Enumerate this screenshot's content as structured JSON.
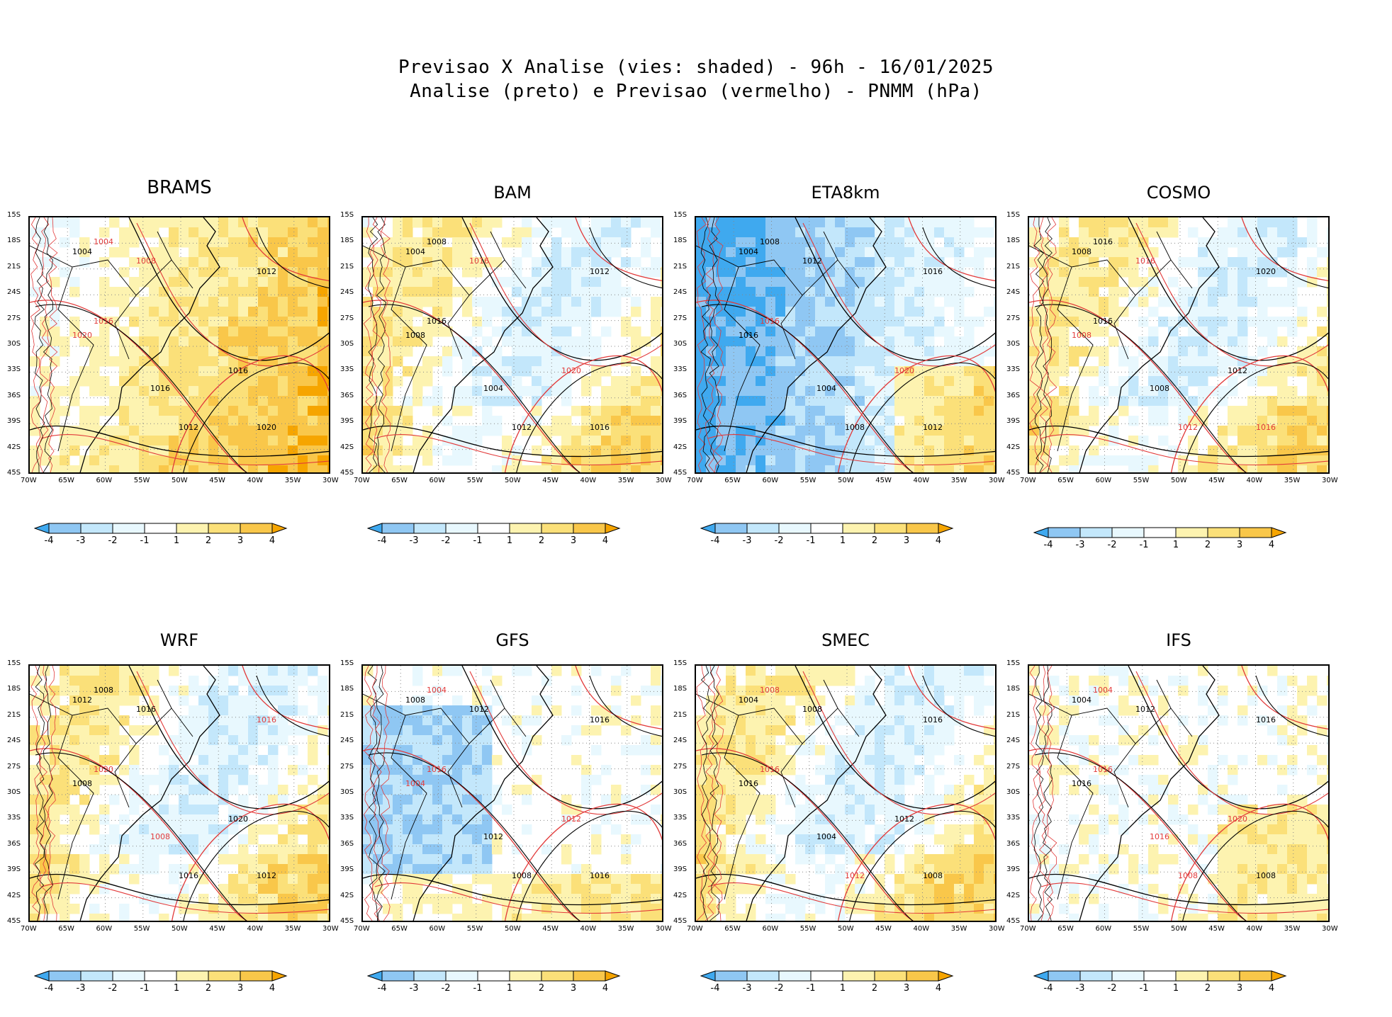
{
  "header": {
    "line1": "Previsao X Analise (vies: shaded) - 96h - 16/01/2025",
    "line2": "Analise (preto) e Previsao (vermelho) - PNMM (hPa)"
  },
  "axes": {
    "lat_ticks": [
      "15S",
      "18S",
      "21S",
      "24S",
      "27S",
      "30S",
      "33S",
      "36S",
      "39S",
      "42S",
      "45S"
    ],
    "lon_ticks": [
      "70W",
      "65W",
      "60W",
      "55W",
      "50W",
      "45W",
      "40W",
      "35W",
      "30W"
    ]
  },
  "colorbar": {
    "labels": [
      "-4",
      "-3",
      "-2",
      "-1",
      "1",
      "2",
      "3",
      "4"
    ],
    "colors": [
      "#3fa9ef",
      "#8fc7f3",
      "#c3e7fb",
      "#e8f8fe",
      "#ffffff",
      "#fdf3b0",
      "#fbe079",
      "#f9c74a",
      "#f6a500"
    ]
  },
  "chart_data": [
    {
      "type": "heatmap",
      "title": "BRAMS",
      "bias": "warm",
      "xlabel": "",
      "ylabel": "",
      "xlim": [
        -70,
        -30
      ],
      "ylim": [
        -45,
        -15
      ],
      "contours": [
        {
          "t": "1004",
          "c": "red"
        },
        {
          "t": "1004",
          "c": "black"
        },
        {
          "t": "1008",
          "c": "red"
        },
        {
          "t": "1012",
          "c": "black"
        },
        {
          "t": "1016",
          "c": "red"
        },
        {
          "t": "1016",
          "c": "black"
        },
        {
          "t": "1020",
          "c": "red"
        },
        {
          "t": "1020",
          "c": "black"
        },
        {
          "t": "1012",
          "c": "black"
        },
        {
          "t": "1016",
          "c": "black"
        }
      ]
    },
    {
      "type": "heatmap",
      "title": "BAM",
      "bias": "mixed",
      "xlabel": "",
      "ylabel": "",
      "xlim": [
        -70,
        -30
      ],
      "ylim": [
        -45,
        -15
      ],
      "contours": [
        {
          "t": "1008",
          "c": "black"
        },
        {
          "t": "1004",
          "c": "black"
        },
        {
          "t": "1016",
          "c": "red"
        },
        {
          "t": "1012",
          "c": "black"
        },
        {
          "t": "1016",
          "c": "black"
        },
        {
          "t": "1020",
          "c": "red"
        },
        {
          "t": "1008",
          "c": "black"
        },
        {
          "t": "1016",
          "c": "black"
        },
        {
          "t": "1012",
          "c": "black"
        },
        {
          "t": "1004",
          "c": "black"
        }
      ]
    },
    {
      "type": "heatmap",
      "title": "ETA8km",
      "bias": "cold",
      "xlabel": "",
      "ylabel": "",
      "xlim": [
        -70,
        -30
      ],
      "ylim": [
        -45,
        -15
      ],
      "contours": [
        {
          "t": "1008",
          "c": "black"
        },
        {
          "t": "1004",
          "c": "black"
        },
        {
          "t": "1012",
          "c": "black"
        },
        {
          "t": "1016",
          "c": "black"
        },
        {
          "t": "1016",
          "c": "red"
        },
        {
          "t": "1020",
          "c": "red"
        },
        {
          "t": "1016",
          "c": "black"
        },
        {
          "t": "1012",
          "c": "black"
        },
        {
          "t": "1008",
          "c": "black"
        },
        {
          "t": "1004",
          "c": "black"
        }
      ]
    },
    {
      "type": "heatmap",
      "title": "COSMO",
      "bias": "mixed",
      "xlabel": "",
      "ylabel": "",
      "xlim": [
        -70,
        -30
      ],
      "ylim": [
        -45,
        -15
      ],
      "contours": [
        {
          "t": "1016",
          "c": "black"
        },
        {
          "t": "1008",
          "c": "black"
        },
        {
          "t": "1016",
          "c": "red"
        },
        {
          "t": "1020",
          "c": "black"
        },
        {
          "t": "1016",
          "c": "black"
        },
        {
          "t": "1012",
          "c": "black"
        },
        {
          "t": "1008",
          "c": "red"
        },
        {
          "t": "1016",
          "c": "red"
        },
        {
          "t": "1012",
          "c": "red"
        },
        {
          "t": "1008",
          "c": "black"
        }
      ]
    },
    {
      "type": "heatmap",
      "title": "WRF",
      "bias": "mixed",
      "xlabel": "",
      "ylabel": "",
      "xlim": [
        -70,
        -30
      ],
      "ylim": [
        -45,
        -15
      ],
      "contours": [
        {
          "t": "1008",
          "c": "black"
        },
        {
          "t": "1012",
          "c": "black"
        },
        {
          "t": "1016",
          "c": "black"
        },
        {
          "t": "1016",
          "c": "red"
        },
        {
          "t": "1020",
          "c": "red"
        },
        {
          "t": "1020",
          "c": "black"
        },
        {
          "t": "1008",
          "c": "black"
        },
        {
          "t": "1012",
          "c": "black"
        },
        {
          "t": "1016",
          "c": "black"
        },
        {
          "t": "1008",
          "c": "red"
        }
      ]
    },
    {
      "type": "heatmap",
      "title": "GFS",
      "bias": "cold-west",
      "xlabel": "",
      "ylabel": "",
      "xlim": [
        -70,
        -30
      ],
      "ylim": [
        -45,
        -15
      ],
      "contours": [
        {
          "t": "1004",
          "c": "red"
        },
        {
          "t": "1008",
          "c": "black"
        },
        {
          "t": "1012",
          "c": "black"
        },
        {
          "t": "1016",
          "c": "black"
        },
        {
          "t": "1016",
          "c": "red"
        },
        {
          "t": "1012",
          "c": "red"
        },
        {
          "t": "1004",
          "c": "red"
        },
        {
          "t": "1016",
          "c": "black"
        },
        {
          "t": "1008",
          "c": "black"
        },
        {
          "t": "1012",
          "c": "black"
        }
      ]
    },
    {
      "type": "heatmap",
      "title": "SMEC",
      "bias": "mixed",
      "xlabel": "",
      "ylabel": "",
      "xlim": [
        -70,
        -30
      ],
      "ylim": [
        -45,
        -15
      ],
      "contours": [
        {
          "t": "1008",
          "c": "red"
        },
        {
          "t": "1004",
          "c": "black"
        },
        {
          "t": "1008",
          "c": "black"
        },
        {
          "t": "1016",
          "c": "black"
        },
        {
          "t": "1016",
          "c": "red"
        },
        {
          "t": "1012",
          "c": "black"
        },
        {
          "t": "1016",
          "c": "black"
        },
        {
          "t": "1008",
          "c": "black"
        },
        {
          "t": "1012",
          "c": "red"
        },
        {
          "t": "1004",
          "c": "black"
        }
      ]
    },
    {
      "type": "heatmap",
      "title": "IFS",
      "bias": "light",
      "xlabel": "",
      "ylabel": "",
      "xlim": [
        -70,
        -30
      ],
      "ylim": [
        -45,
        -15
      ],
      "contours": [
        {
          "t": "1004",
          "c": "red"
        },
        {
          "t": "1004",
          "c": "black"
        },
        {
          "t": "1012",
          "c": "black"
        },
        {
          "t": "1016",
          "c": "black"
        },
        {
          "t": "1016",
          "c": "red"
        },
        {
          "t": "1020",
          "c": "red"
        },
        {
          "t": "1016",
          "c": "black"
        },
        {
          "t": "1008",
          "c": "black"
        },
        {
          "t": "1008",
          "c": "red"
        },
        {
          "t": "1016",
          "c": "red"
        }
      ]
    }
  ]
}
